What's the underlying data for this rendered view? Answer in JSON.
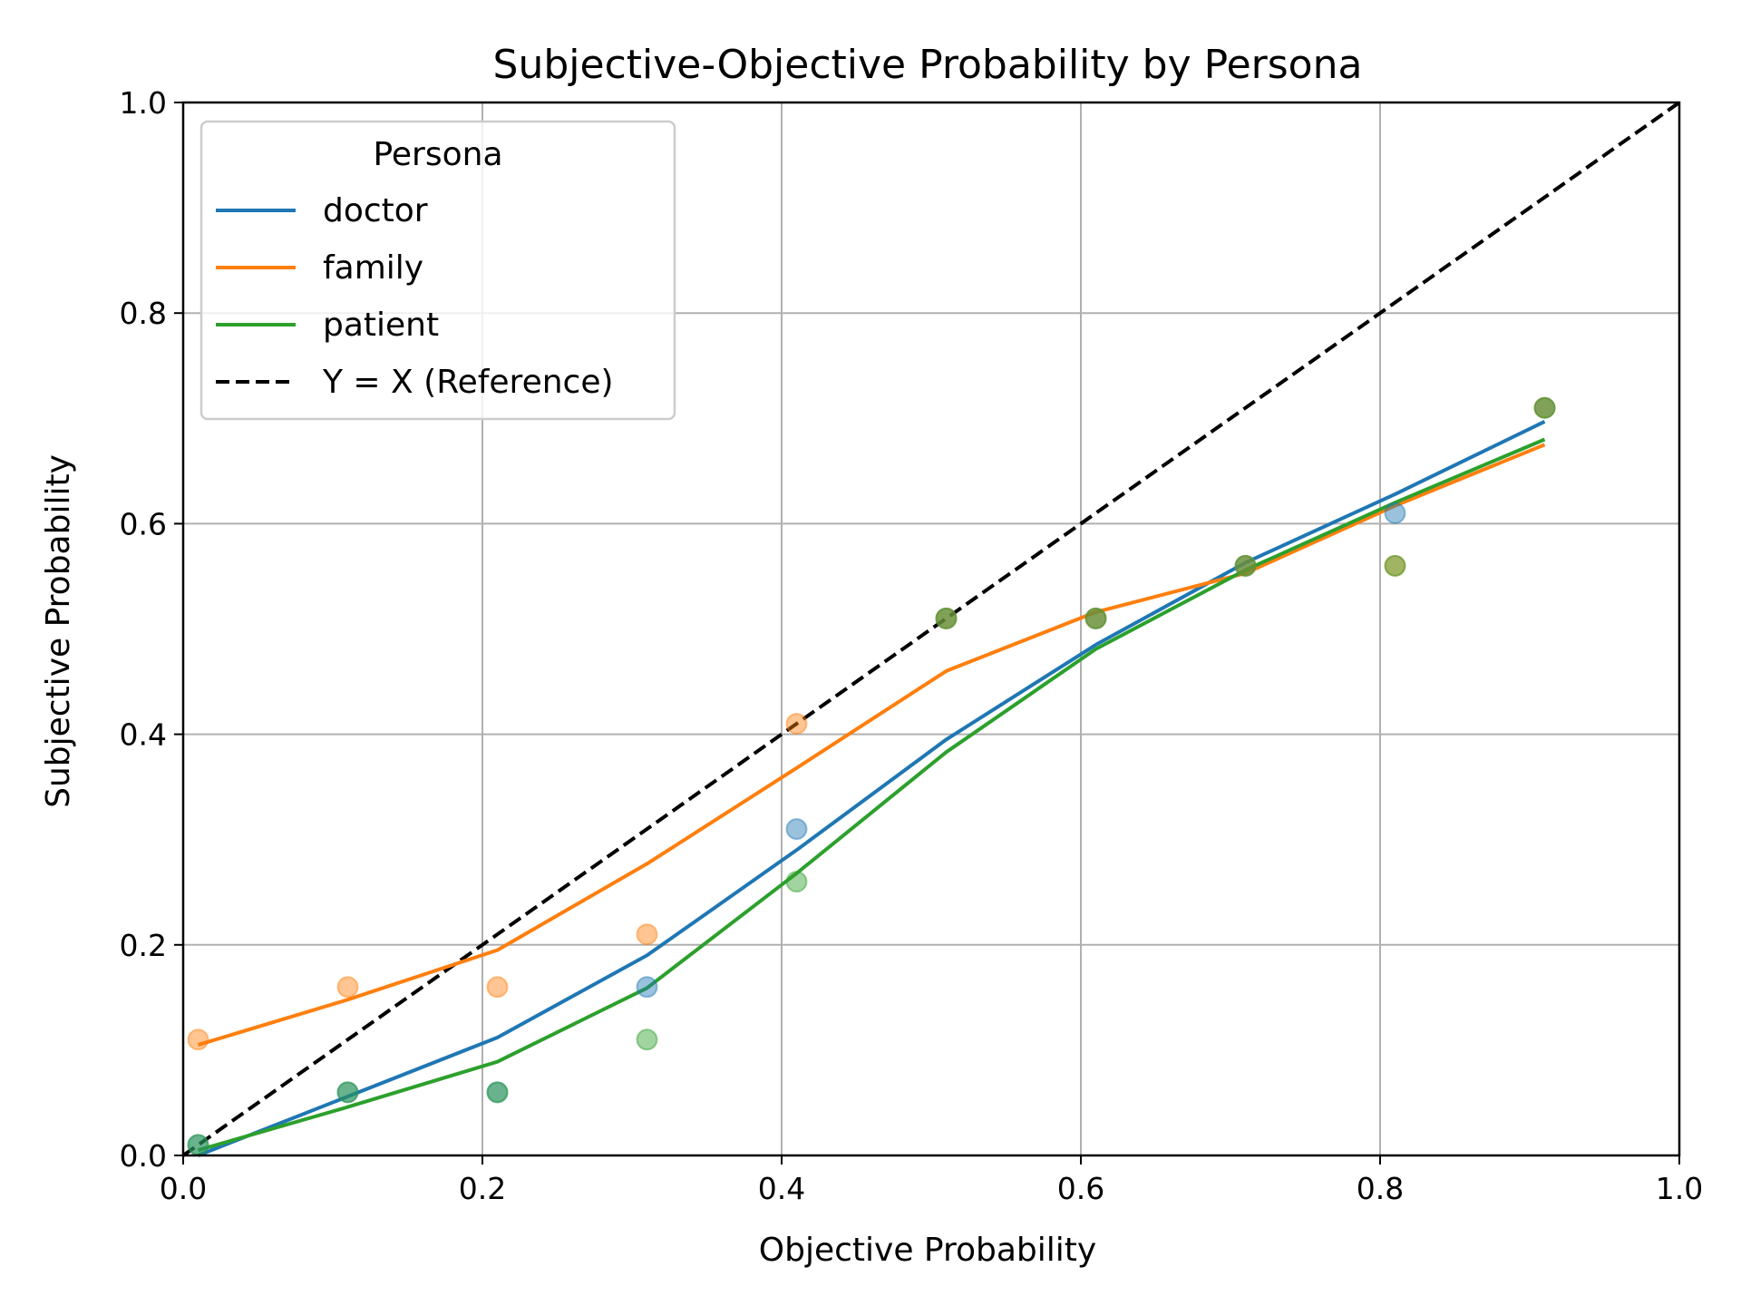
{
  "chart_data": {
    "type": "line",
    "title": "Subjective-Objective Probability by Persona",
    "xlabel": "Objective Probability",
    "ylabel": "Subjective Probability",
    "xlim": [
      0.0,
      1.0
    ],
    "ylim": [
      0.0,
      1.0
    ],
    "xticks": [
      "0.0",
      "0.2",
      "0.4",
      "0.6",
      "0.8",
      "1.0"
    ],
    "yticks": [
      "0.0",
      "0.2",
      "0.4",
      "0.6",
      "0.8",
      "1.0"
    ],
    "grid": true,
    "legend": {
      "title": "Persona",
      "position": "top-left"
    },
    "x": [
      0.01,
      0.11,
      0.21,
      0.31,
      0.41,
      0.51,
      0.61,
      0.71,
      0.81,
      0.91
    ],
    "series": [
      {
        "name": "doctor",
        "color": "#1f77b4",
        "points_y": [
          0.01,
          0.06,
          0.06,
          0.16,
          0.31,
          0.51,
          0.51,
          0.56,
          0.61,
          0.71
        ],
        "fit_y": [
          0.0,
          0.056,
          0.112,
          0.19,
          0.29,
          0.395,
          0.485,
          0.563,
          0.628,
          0.697
        ]
      },
      {
        "name": "family",
        "color": "#ff7f0e",
        "points_y": [
          0.11,
          0.16,
          0.16,
          0.21,
          0.41,
          0.51,
          0.51,
          0.56,
          0.56,
          0.71
        ],
        "fit_y": [
          0.105,
          0.148,
          0.195,
          0.277,
          0.368,
          0.46,
          0.516,
          0.553,
          0.617,
          0.675
        ]
      },
      {
        "name": "patient",
        "color": "#2ca02c",
        "points_y": [
          0.01,
          0.06,
          0.06,
          0.11,
          0.26,
          0.51,
          0.51,
          0.56,
          0.56,
          0.71
        ],
        "fit_y": [
          0.005,
          0.046,
          0.089,
          0.159,
          0.268,
          0.383,
          0.481,
          0.556,
          0.62,
          0.68
        ]
      }
    ],
    "reference": {
      "name": "Y = X (Reference)",
      "color": "#000000",
      "x": [
        0.0,
        1.0
      ],
      "y": [
        0.0,
        1.0
      ]
    }
  }
}
